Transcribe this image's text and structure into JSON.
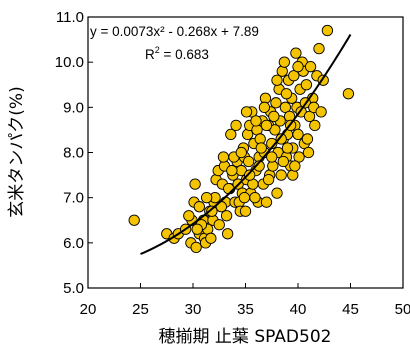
{
  "chart_data": {
    "type": "scatter",
    "title": "",
    "xlabel": "穂揃期 止葉 SPAD502",
    "ylabel": "玄米タンパク(%)",
    "xlim": [
      20,
      50
    ],
    "ylim": [
      5.0,
      11.0
    ],
    "xticks": [
      "20",
      "25",
      "30",
      "35",
      "40",
      "45",
      "50"
    ],
    "yticks": [
      "5.0",
      "6.0",
      "7.0",
      "8.0",
      "9.0",
      "10.0",
      "11.0"
    ],
    "grid": false,
    "legend": "none",
    "marker_color": "#f5c400",
    "marker_edge": "#000000",
    "annotations": {
      "equation": "y = 0.0073x² - 0.268x + 7.89",
      "r2_prefix": "R",
      "r2_sup": "2",
      "r2_value": " = 0.683"
    },
    "trendline": {
      "type": "polynomial",
      "coefficients": [
        0.0073,
        -0.268,
        7.89
      ],
      "x_range": [
        25,
        45
      ]
    },
    "points": [
      [
        24.4,
        6.5
      ],
      [
        27.5,
        6.2
      ],
      [
        28.2,
        6.1
      ],
      [
        28.6,
        6.2
      ],
      [
        29.3,
        6.3
      ],
      [
        29.8,
        6.0
      ],
      [
        29.9,
        6.5
      ],
      [
        30.3,
        5.9
      ],
      [
        30.6,
        6.2
      ],
      [
        30.1,
        6.9
      ],
      [
        30.2,
        7.3
      ],
      [
        30.6,
        6.8
      ],
      [
        31.0,
        6.5
      ],
      [
        31.1,
        6.1
      ],
      [
        31.2,
        6.0
      ],
      [
        31.4,
        6.3
      ],
      [
        31.6,
        6.7
      ],
      [
        31.7,
        6.1
      ],
      [
        31.9,
        6.5
      ],
      [
        32.0,
        6.9
      ],
      [
        32.1,
        7.0
      ],
      [
        32.2,
        7.4
      ],
      [
        32.4,
        7.6
      ],
      [
        32.5,
        6.4
      ],
      [
        32.8,
        7.3
      ],
      [
        33.0,
        7.7
      ],
      [
        33.1,
        6.9
      ],
      [
        33.2,
        6.6
      ],
      [
        33.3,
        6.2
      ],
      [
        33.5,
        7.2
      ],
      [
        33.6,
        8.4
      ],
      [
        33.8,
        7.5
      ],
      [
        34.0,
        6.9
      ],
      [
        34.2,
        7.8
      ],
      [
        34.3,
        7.3
      ],
      [
        34.4,
        6.9
      ],
      [
        34.5,
        6.7
      ],
      [
        34.6,
        7.6
      ],
      [
        34.7,
        7.1
      ],
      [
        34.8,
        8.1
      ],
      [
        34.9,
        7.9
      ],
      [
        35.0,
        6.7
      ],
      [
        35.1,
        7.4
      ],
      [
        35.2,
        8.4
      ],
      [
        35.3,
        7.8
      ],
      [
        35.4,
        8.6
      ],
      [
        35.5,
        7.1
      ],
      [
        35.6,
        8.9
      ],
      [
        35.8,
        8.2
      ],
      [
        36.0,
        7.6
      ],
      [
        36.1,
        8.5
      ],
      [
        36.2,
        6.9
      ],
      [
        36.3,
        7.9
      ],
      [
        36.4,
        8.3
      ],
      [
        36.6,
        8.7
      ],
      [
        36.7,
        7.3
      ],
      [
        36.8,
        8.0
      ],
      [
        37.0,
        6.9
      ],
      [
        37.2,
        8.6
      ],
      [
        37.3,
        7.5
      ],
      [
        37.4,
        8.9
      ],
      [
        37.5,
        8.2
      ],
      [
        37.6,
        7.7
      ],
      [
        37.8,
        8.5
      ],
      [
        37.9,
        9.1
      ],
      [
        38.0,
        7.1
      ],
      [
        38.1,
        8.0
      ],
      [
        38.2,
        9.4
      ],
      [
        38.3,
        8.7
      ],
      [
        38.4,
        7.5
      ],
      [
        38.5,
        9.8
      ],
      [
        38.6,
        8.3
      ],
      [
        38.7,
        10.0
      ],
      [
        38.8,
        9.0
      ],
      [
        38.9,
        7.9
      ],
      [
        39.0,
        8.4
      ],
      [
        39.1,
        9.6
      ],
      [
        39.2,
        8.8
      ],
      [
        39.3,
        7.7
      ],
      [
        39.4,
        9.2
      ],
      [
        39.5,
        8.1
      ],
      [
        39.6,
        9.7
      ],
      [
        39.7,
        8.6
      ],
      [
        39.8,
        10.2
      ],
      [
        39.9,
        9.0
      ],
      [
        40.0,
        8.4
      ],
      [
        40.1,
        7.9
      ],
      [
        40.2,
        9.4
      ],
      [
        40.3,
        8.9
      ],
      [
        40.4,
        10.0
      ],
      [
        40.5,
        9.8
      ],
      [
        40.6,
        8.2
      ],
      [
        40.8,
        9.5
      ],
      [
        41.0,
        8.0
      ],
      [
        41.2,
        9.9
      ],
      [
        41.4,
        9.2
      ],
      [
        41.6,
        8.6
      ],
      [
        41.8,
        9.7
      ],
      [
        42.0,
        10.3
      ],
      [
        42.4,
        9.6
      ],
      [
        42.8,
        10.7
      ],
      [
        44.8,
        9.3
      ],
      [
        37.0,
        8.6
      ],
      [
        38.9,
        9.3
      ],
      [
        36.5,
        8.1
      ],
      [
        35.9,
        7.0
      ],
      [
        33.9,
        7.9
      ],
      [
        32.7,
        6.8
      ],
      [
        31.3,
        7.0
      ],
      [
        30.8,
        6.4
      ],
      [
        34.1,
        8.6
      ],
      [
        36.9,
        9.2
      ],
      [
        39.0,
        8.1
      ],
      [
        37.7,
        8.8
      ],
      [
        40.7,
        9.1
      ],
      [
        38.4,
        8.3
      ],
      [
        35.7,
        7.3
      ],
      [
        33.4,
        7.2
      ],
      [
        36.3,
        7.7
      ],
      [
        39.5,
        7.5
      ],
      [
        41.1,
        8.8
      ],
      [
        37.2,
        7.4
      ],
      [
        34.9,
        7.0
      ],
      [
        32.9,
        7.9
      ],
      [
        35.1,
        8.9
      ],
      [
        38.0,
        9.6
      ],
      [
        40.0,
        9.9
      ],
      [
        41.5,
        9.0
      ],
      [
        36.0,
        8.7
      ],
      [
        37.5,
        7.9
      ],
      [
        39.3,
        8.6
      ],
      [
        34.6,
        8.0
      ],
      [
        33.7,
        7.6
      ],
      [
        31.8,
        6.7
      ],
      [
        30.4,
        6.3
      ],
      [
        29.6,
        6.6
      ],
      [
        35.4,
        7.5
      ],
      [
        36.8,
        9.0
      ],
      [
        38.6,
        7.8
      ],
      [
        40.9,
        8.3
      ],
      [
        39.7,
        7.7
      ],
      [
        42.2,
        8.9
      ]
    ]
  }
}
